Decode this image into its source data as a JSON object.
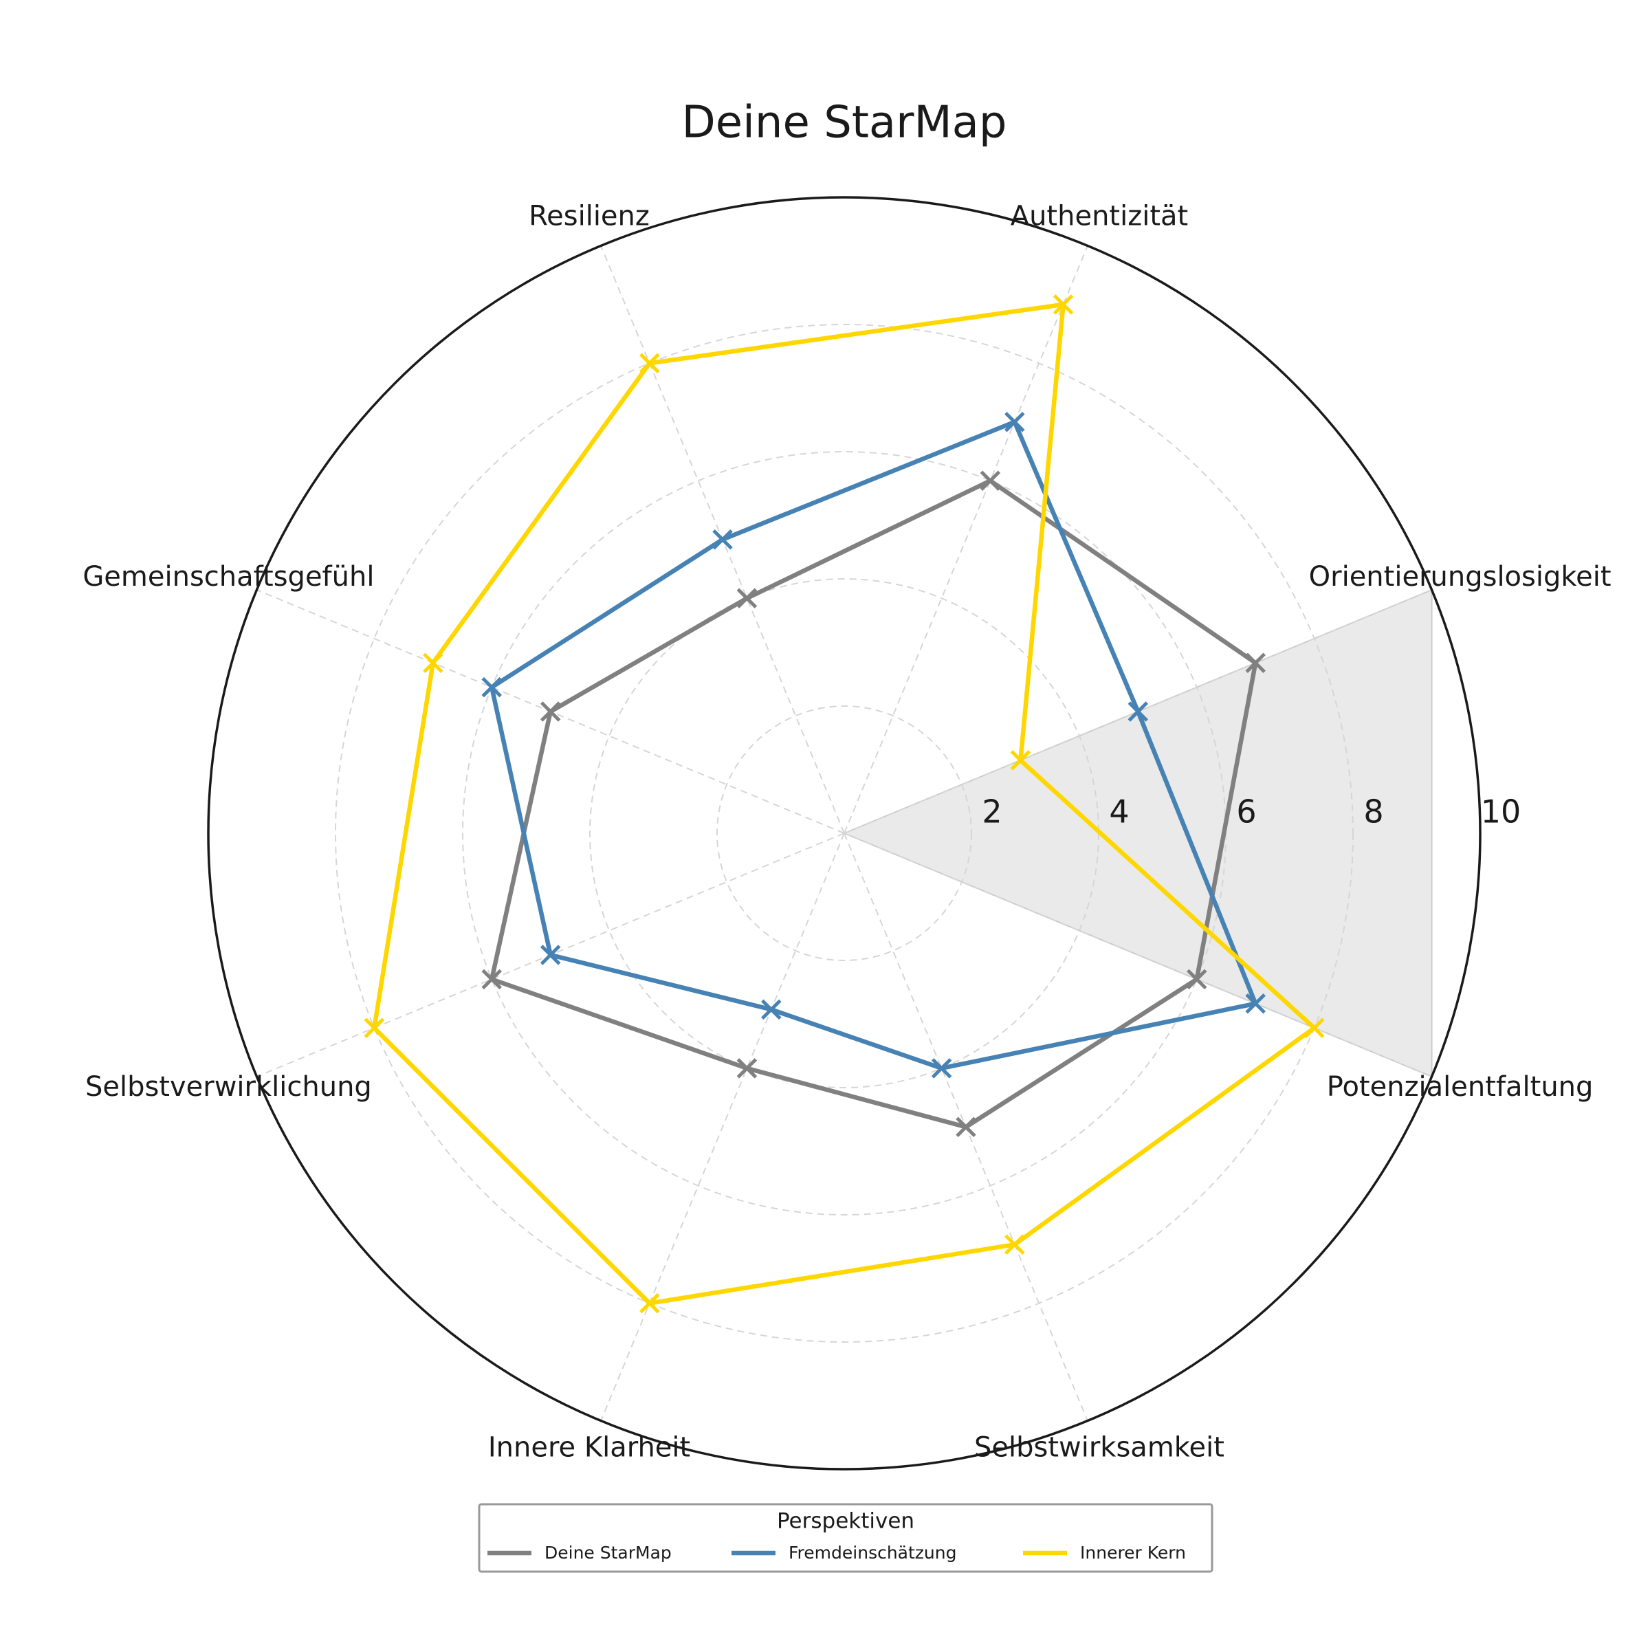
{
  "chart_data": {
    "type": "radar",
    "title": "Deine StarMap",
    "categories": [
      "Orientierungslosigkeit",
      "Authentizität",
      "Resilienz",
      "Gemeinschaftsgefühl",
      "Selbstverwirklichung",
      "Innere Klarheit",
      "Selbstwirksamkeit",
      "Potenzialentfaltung"
    ],
    "series": [
      {
        "name": "Deine StarMap",
        "color": "#808080",
        "values": [
          7,
          6,
          4,
          5,
          6,
          4,
          5,
          6
        ]
      },
      {
        "name": "Fremdeinschätzung",
        "color": "#4682b4",
        "values": [
          5,
          7,
          5,
          6,
          5,
          3,
          4,
          7
        ]
      },
      {
        "name": "Innerer Kern",
        "color": "#ffd700",
        "values": [
          3,
          9,
          8,
          7,
          8,
          8,
          7,
          8
        ]
      }
    ],
    "ylim": [
      0,
      10
    ],
    "yticks": [
      2,
      4,
      6,
      8,
      10
    ],
    "grid": true,
    "marker": "x",
    "legend": {
      "title": "Perspektiven",
      "location": "lower center"
    }
  }
}
